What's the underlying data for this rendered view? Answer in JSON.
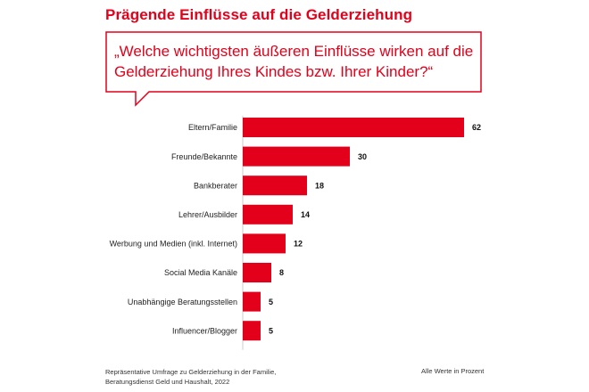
{
  "title": "Prägende Einflüsse auf die Gelderziehung",
  "question": "„Welche wichtigsten äußeren Einflüsse wirken auf die Gelderziehung Ihres Kindes bzw. Ihrer Kinder?“",
  "colors": {
    "accent": "#e2001a",
    "bar": "#e2001a",
    "text": "#222222"
  },
  "chart_data": {
    "type": "bar",
    "orientation": "horizontal",
    "title": "Prägende Einflüsse auf die Gelderziehung",
    "categories": [
      "Eltern/Familie",
      "Freunde/Bekannte",
      "Bankberater",
      "Lehrer/Ausbilder",
      "Werbung und Medien (inkl. Internet)",
      "Social Media Kanäle",
      "Unabhängige Beratungsstellen",
      "Influencer/Blogger"
    ],
    "values": [
      62,
      30,
      18,
      14,
      12,
      8,
      5,
      5
    ],
    "xlim": [
      0,
      62
    ],
    "unit": "%",
    "grid": false,
    "xlabel": "",
    "ylabel": ""
  },
  "footer": {
    "source_line1": "Repräsentative Umfrage zu Gelderziehung in der Familie,",
    "source_line2": "Beratungsdienst Geld und Haushalt, 2022",
    "note": "Alle Werte in Prozent"
  }
}
